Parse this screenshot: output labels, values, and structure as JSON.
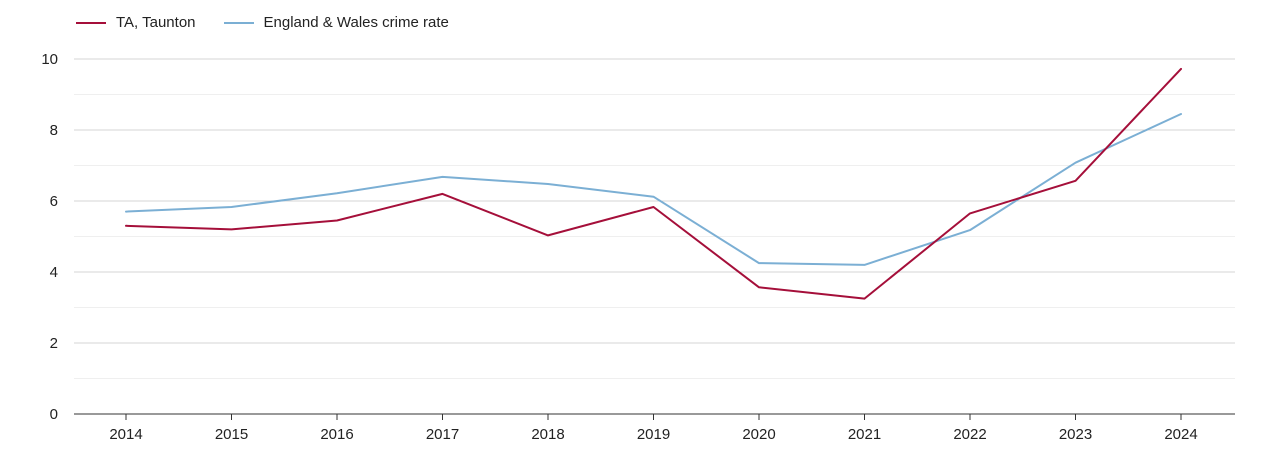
{
  "chart_data": {
    "type": "line",
    "title": "",
    "xlabel": "",
    "ylabel": "",
    "categories": [
      "2014",
      "2015",
      "2016",
      "2017",
      "2018",
      "2019",
      "2020",
      "2021",
      "2022",
      "2023",
      "2024"
    ],
    "ylim": [
      0,
      10
    ],
    "yticks": [
      0,
      2,
      4,
      6,
      8,
      10
    ],
    "ytick_labels": [
      "0",
      "2",
      "4",
      "6",
      "8",
      "10"
    ],
    "minor_grid_step": 1,
    "grid": true,
    "legend_position": "top-left",
    "series": [
      {
        "name": "TA, Taunton",
        "color": "#a50f3a",
        "values": [
          5.3,
          5.2,
          5.45,
          6.2,
          5.03,
          5.83,
          3.57,
          3.25,
          5.65,
          6.57,
          9.72
        ]
      },
      {
        "name": "England & Wales crime rate",
        "color": "#7bafd4",
        "values": [
          5.7,
          5.83,
          6.22,
          6.68,
          6.48,
          6.12,
          4.25,
          4.2,
          5.18,
          7.08,
          8.45
        ]
      }
    ]
  }
}
